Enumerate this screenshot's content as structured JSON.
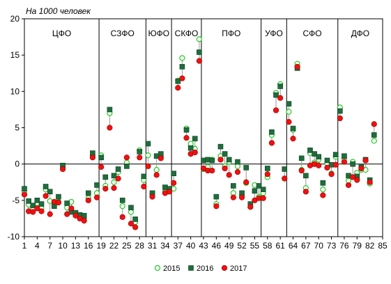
{
  "chart_data": {
    "type": "scatter",
    "ylabel": "На 1000 человек",
    "ylim": [
      -10,
      20
    ],
    "yticks": [
      -10,
      -5,
      0,
      5,
      10,
      15,
      20
    ],
    "xlim": [
      1,
      85
    ],
    "xticks": [
      1,
      4,
      7,
      10,
      13,
      16,
      19,
      22,
      25,
      28,
      31,
      34,
      37,
      40,
      43,
      46,
      49,
      52,
      55,
      58,
      61,
      64,
      67,
      70,
      73,
      76,
      79,
      82,
      85
    ],
    "grid": false,
    "regions": [
      "ЦФО",
      "СЗФО",
      "ЮФО",
      "СКФО",
      "ПФО",
      "УФО",
      "СФО",
      "ДФО"
    ],
    "region_dividers": [
      18.5,
      29.5,
      35.5,
      42.5,
      56.5,
      62.5,
      74.5
    ],
    "legend_position": "bottom",
    "series": [
      {
        "name": "2015",
        "color": "#22cc22",
        "marker": "circle-open",
        "values": [
          -3.8,
          -5.6,
          -6.3,
          -5.4,
          -6.1,
          -3.5,
          -5.1,
          -5.6,
          -5.2,
          -0.3,
          -6.0,
          -5.2,
          -6.8,
          -7.1,
          -7.4,
          -4.7,
          1.1,
          -4.0,
          1.2,
          -3.0,
          7.0,
          -2.5,
          -1.1,
          -5.8,
          0.2,
          -6.6,
          -8.0,
          1.9,
          -2.2,
          1.2,
          -4.1,
          -0.8,
          1.0,
          -3.8,
          -3.6,
          -3.4,
          11.5,
          14.6,
          4.9,
          2.8,
          2.1,
          17.2,
          -0.7,
          -0.4,
          0.6,
          -5.5,
          1.1,
          -0.3,
          0.3,
          -4.0,
          -0.3,
          -4.4,
          -2.6,
          -5.9,
          -2.9,
          -4.5,
          -4.0,
          -1.8,
          4.0,
          9.8,
          11.0,
          -2.0,
          7.2,
          4.7,
          13.8,
          -0.8,
          -3.3,
          1.5,
          0.2,
          0.6,
          -3.5,
          0.1,
          -1.3,
          1.0,
          7.8,
          0.8,
          -2.3,
          0.3,
          -1.2,
          -0.8,
          -0.8,
          -2.7,
          3.2
        ]
      },
      {
        "name": "2016",
        "color": "#1e6e3c",
        "marker": "square",
        "values": [
          -3.4,
          -5.1,
          -5.7,
          -5.0,
          -5.5,
          -3.1,
          -3.8,
          -5.8,
          -4.5,
          -0.2,
          -5.4,
          -6.6,
          -6.7,
          -7.0,
          -7.1,
          -4.0,
          1.5,
          -2.9,
          0.9,
          -1.8,
          7.5,
          -1.6,
          -0.7,
          -5.0,
          -0.3,
          -6.0,
          -7.6,
          1.7,
          -1.7,
          2.8,
          -4.0,
          1.1,
          1.4,
          -3.2,
          -3.4,
          -1.3,
          11.4,
          13.4,
          4.7,
          2.2,
          3.5,
          15.4,
          0.5,
          0.6,
          0.5,
          -4.5,
          2.4,
          1.4,
          0.6,
          -3.0,
          0.3,
          -4.0,
          -0.5,
          -5.5,
          -3.7,
          -3.0,
          -3.5,
          -0.6,
          4.4,
          9.5,
          10.7,
          -0.7,
          8.3,
          4.9,
          13.2,
          0.8,
          -1.6,
          1.9,
          1.4,
          1.0,
          -2.6,
          0.5,
          -0.1,
          1.3,
          7.3,
          1.1,
          -1.6,
          0.0,
          -1.7,
          -0.3,
          0.6,
          -2.2,
          4.0
        ]
      },
      {
        "name": "2017",
        "color": "#ee1111",
        "marker": "circle",
        "values": [
          -4.2,
          -6.5,
          -6.6,
          -6.1,
          -6.5,
          -4.4,
          -6.9,
          -5.2,
          -5.3,
          -0.7,
          -6.9,
          -6.1,
          -7.1,
          -7.5,
          -7.8,
          -5.0,
          0.9,
          -4.6,
          -0.4,
          -3.4,
          5.0,
          -3.3,
          -2.0,
          -7.3,
          0.9,
          -8.2,
          -8.7,
          0.9,
          -3.1,
          -0.3,
          -4.5,
          -1.5,
          0.8,
          -4.0,
          -3.8,
          -2.6,
          10.5,
          11.8,
          3.6,
          1.4,
          1.6,
          14.2,
          -0.6,
          -0.9,
          -0.9,
          -5.8,
          0.6,
          -0.6,
          -1.5,
          -4.6,
          -1.1,
          -4.6,
          -2.5,
          -5.9,
          -5.0,
          -4.7,
          -4.7,
          -1.4,
          2.9,
          7.4,
          9.1,
          -2.0,
          5.8,
          3.5,
          13.4,
          -0.9,
          -3.8,
          -0.2,
          0.0,
          -0.2,
          -4.3,
          -0.5,
          -1.4,
          -0.1,
          6.3,
          0.3,
          -2.9,
          -1.8,
          -2.2,
          -0.6,
          0.5,
          -2.5,
          5.5
        ]
      }
    ]
  }
}
